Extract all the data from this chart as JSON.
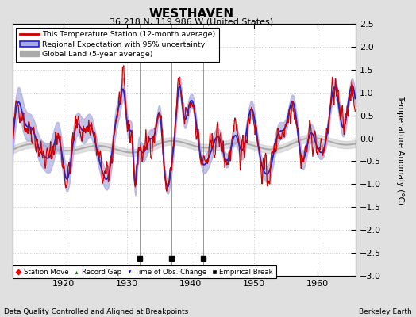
{
  "title": "WESTHAVEN",
  "subtitle": "36.218 N, 119.986 W (United States)",
  "ylabel": "Temperature Anomaly (°C)",
  "xlabel_note": "Data Quality Controlled and Aligned at Breakpoints",
  "credit": "Berkeley Earth",
  "xlim": [
    1912,
    1966
  ],
  "ylim": [
    -3.0,
    2.5
  ],
  "yticks": [
    -3,
    -2.5,
    -2,
    -1.5,
    -1,
    -0.5,
    0,
    0.5,
    1,
    1.5,
    2,
    2.5
  ],
  "xticks": [
    1920,
    1930,
    1940,
    1950,
    1960
  ],
  "empirical_breaks": [
    1932,
    1937,
    1942
  ],
  "bg_color": "#e0e0e0",
  "plot_bg_color": "#ffffff",
  "regional_color": "#2222cc",
  "regional_fill": "#aaaadd",
  "station_color": "#cc0000",
  "global_color": "#aaaaaa",
  "global_fill": "#cccccc",
  "seed": 42
}
